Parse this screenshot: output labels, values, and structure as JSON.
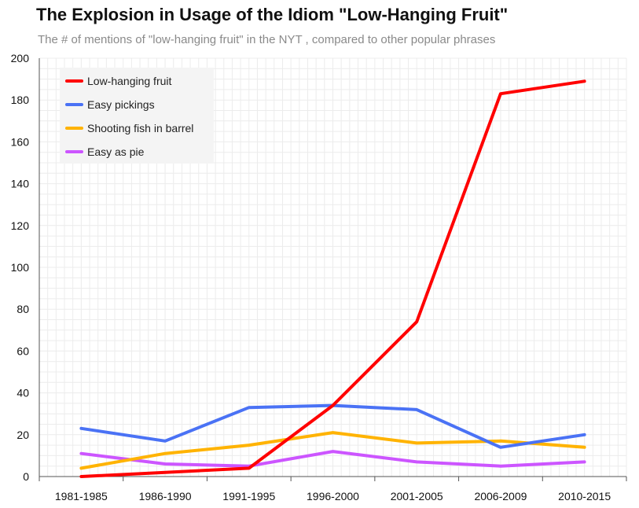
{
  "chart_data": {
    "type": "line",
    "title": "The Explosion in Usage of the Idiom \"Low-Hanging Fruit\"",
    "subtitle": "The # of mentions of \"low-hanging fruit\" in the NYT , compared to other popular phrases",
    "categories": [
      "1981-1985",
      "1986-1990",
      "1991-1995",
      "1996-2000",
      "2001-2005",
      "2006-2009",
      "2010-2015"
    ],
    "ylim": [
      0,
      200
    ],
    "yticks": [
      0,
      20,
      40,
      60,
      80,
      100,
      120,
      140,
      160,
      180,
      200
    ],
    "grid": true,
    "legend_position": "top-left",
    "series": [
      {
        "name": "Low-hanging fruit",
        "color": "#ff0000",
        "values": [
          0,
          2,
          4,
          34,
          74,
          183,
          189
        ]
      },
      {
        "name": "Easy pickings",
        "color": "#4a72f5",
        "values": [
          23,
          17,
          33,
          34,
          32,
          14,
          20
        ]
      },
      {
        "name": "Shooting fish in barrel",
        "color": "#ffb300",
        "values": [
          4,
          11,
          15,
          21,
          16,
          17,
          14
        ]
      },
      {
        "name": "Easy as pie",
        "color": "#cc55ff",
        "values": [
          11,
          6,
          5,
          12,
          7,
          5,
          7
        ]
      }
    ]
  }
}
